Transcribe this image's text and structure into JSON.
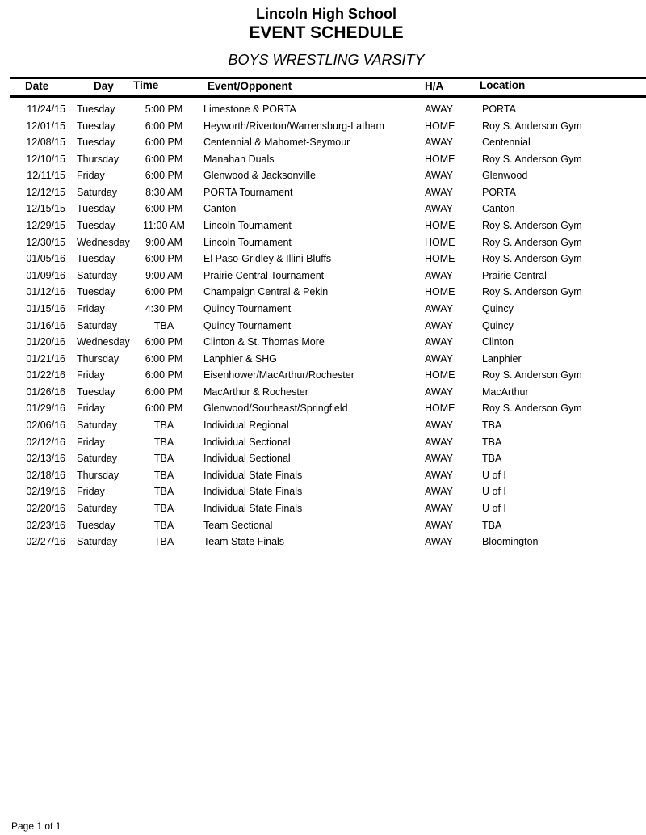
{
  "header": {
    "school": "Lincoln High School",
    "title": "EVENT SCHEDULE",
    "subtitle": "BOYS WRESTLING VARSITY"
  },
  "columns": {
    "date": "Date",
    "day": "Day",
    "time": "Time",
    "event": "Event/Opponent",
    "ha": "H/A",
    "location": "Location"
  },
  "rows": [
    [
      "11/24/15",
      "Tuesday",
      "5:00 PM",
      "Limestone & PORTA",
      "AWAY",
      "PORTA"
    ],
    [
      "12/01/15",
      "Tuesday",
      "6:00 PM",
      "Heyworth/Riverton/Warrensburg-Latham",
      "HOME",
      "Roy S. Anderson Gym"
    ],
    [
      "12/08/15",
      "Tuesday",
      "6:00 PM",
      "Centennial & Mahomet-Seymour",
      "AWAY",
      "Centennial"
    ],
    [
      "12/10/15",
      "Thursday",
      "6:00 PM",
      "Manahan Duals",
      "HOME",
      "Roy S. Anderson Gym"
    ],
    [
      "12/11/15",
      "Friday",
      "6:00 PM",
      "Glenwood & Jacksonville",
      "AWAY",
      "Glenwood"
    ],
    [
      "12/12/15",
      "Saturday",
      "8:30 AM",
      "PORTA Tournament",
      "AWAY",
      "PORTA"
    ],
    [
      "12/15/15",
      "Tuesday",
      "6:00 PM",
      "Canton",
      "AWAY",
      "Canton"
    ],
    [
      "12/29/15",
      "Tuesday",
      "11:00 AM",
      "Lincoln Tournament",
      "HOME",
      "Roy S. Anderson Gym"
    ],
    [
      "12/30/15",
      "Wednesday",
      "9:00 AM",
      "Lincoln Tournament",
      "HOME",
      "Roy S. Anderson Gym"
    ],
    [
      "01/05/16",
      "Tuesday",
      "6:00 PM",
      "El Paso-Gridley & Illini Bluffs",
      "HOME",
      "Roy S. Anderson Gym"
    ],
    [
      "01/09/16",
      "Saturday",
      "9:00 AM",
      "Prairie Central Tournament",
      "AWAY",
      "Prairie Central"
    ],
    [
      "01/12/16",
      "Tuesday",
      "6:00 PM",
      "Champaign Central & Pekin",
      "HOME",
      "Roy S. Anderson Gym"
    ],
    [
      "01/15/16",
      "Friday",
      "4:30 PM",
      "Quincy Tournament",
      "AWAY",
      "Quincy"
    ],
    [
      "01/16/16",
      "Saturday",
      "TBA",
      "Quincy Tournament",
      "AWAY",
      "Quincy"
    ],
    [
      "01/20/16",
      "Wednesday",
      "6:00 PM",
      "Clinton & St. Thomas More",
      "AWAY",
      "Clinton"
    ],
    [
      "01/21/16",
      "Thursday",
      "6:00 PM",
      "Lanphier & SHG",
      "AWAY",
      "Lanphier"
    ],
    [
      "01/22/16",
      "Friday",
      "6:00 PM",
      "Eisenhower/MacArthur/Rochester",
      "HOME",
      "Roy S. Anderson Gym"
    ],
    [
      "01/26/16",
      "Tuesday",
      "6:00 PM",
      "MacArthur & Rochester",
      "AWAY",
      "MacArthur"
    ],
    [
      "01/29/16",
      "Friday",
      "6:00 PM",
      "Glenwood/Southeast/Springfield",
      "HOME",
      "Roy S. Anderson Gym"
    ],
    [
      "02/06/16",
      "Saturday",
      "TBA",
      "Individual Regional",
      "AWAY",
      "TBA"
    ],
    [
      "02/12/16",
      "Friday",
      "TBA",
      "Individual Sectional",
      "AWAY",
      "TBA"
    ],
    [
      "02/13/16",
      "Saturday",
      "TBA",
      "Individual Sectional",
      "AWAY",
      "TBA"
    ],
    [
      "02/18/16",
      "Thursday",
      "TBA",
      "Individual State Finals",
      "AWAY",
      "U of I"
    ],
    [
      "02/19/16",
      "Friday",
      "TBA",
      "Individual State Finals",
      "AWAY",
      "U of I"
    ],
    [
      "02/20/16",
      "Saturday",
      "TBA",
      "Individual State Finals",
      "AWAY",
      "U of I"
    ],
    [
      "02/23/16",
      "Tuesday",
      "TBA",
      "Team Sectional",
      "AWAY",
      "TBA"
    ],
    [
      "02/27/16",
      "Saturday",
      "TBA",
      "Team State Finals",
      "AWAY",
      "Bloomington"
    ]
  ],
  "footer": {
    "page": "Page 1 of 1"
  }
}
